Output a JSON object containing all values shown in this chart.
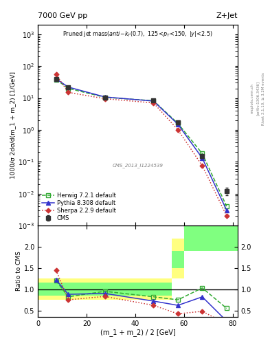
{
  "title_left": "7000 GeV pp",
  "title_right": "Z+Jet",
  "cms_label": "CMS_2013_I1224539",
  "rivet_label": "Rivet 3.1.10, ≥ 3.2M events",
  "arxiv_label": "[arXiv:1306.3436]",
  "mcplots_label": "mcplots.cern.ch",
  "xlabel": "(m_1 + m_2) / 2 [GeV]",
  "ylabel_main": "1000/σ 2dσ/d(m_1 + m_2) [1/GeV]",
  "ylabel_ratio": "Ratio to CMS",
  "xlim": [
    0,
    82
  ],
  "ylim_main": [
    0.001,
    2000.0
  ],
  "ylim_ratio": [
    0.35,
    2.5
  ],
  "x_ticks": [
    0,
    20,
    40,
    60,
    80
  ],
  "cms_x": [
    7.5,
    12.5,
    27.5,
    47.5,
    57.5,
    67.5,
    77.5
  ],
  "cms_y": [
    40,
    22,
    10.5,
    8.5,
    1.7,
    0.15,
    0.012
  ],
  "cms_yerr_lo": [
    3,
    2,
    1,
    0.8,
    0.2,
    0.02,
    0.003
  ],
  "cms_yerr_hi": [
    3,
    2,
    1,
    0.8,
    0.2,
    0.02,
    0.003
  ],
  "herwig_x": [
    7.5,
    12.5,
    27.5,
    47.5,
    57.5,
    67.5,
    77.5
  ],
  "herwig_y": [
    38,
    20,
    10.5,
    8.2,
    1.6,
    0.18,
    0.004
  ],
  "pythia_x": [
    7.5,
    12.5,
    27.5,
    47.5,
    57.5,
    67.5,
    77.5
  ],
  "pythia_y": [
    40,
    22,
    10.8,
    8.0,
    1.5,
    0.13,
    0.003
  ],
  "sherpa_x": [
    7.5,
    12.5,
    27.5,
    47.5,
    57.5,
    67.5,
    77.5
  ],
  "sherpa_y": [
    55,
    15,
    9.5,
    7.0,
    1.0,
    0.075,
    0.002
  ],
  "ratio_herwig_x": [
    7.5,
    12.5,
    27.5,
    47.5,
    57.5,
    67.5,
    77.5
  ],
  "ratio_herwig_y": [
    1.2,
    0.82,
    0.95,
    0.82,
    0.75,
    1.03,
    0.55
  ],
  "ratio_pythia_x": [
    7.5,
    12.5,
    27.5,
    47.5,
    57.5,
    67.5,
    77.5
  ],
  "ratio_pythia_y": [
    1.22,
    0.88,
    0.9,
    0.72,
    0.62,
    0.82,
    0.25
  ],
  "ratio_sherpa_x": [
    7.5,
    12.5,
    27.5,
    47.5,
    57.5,
    67.5,
    77.5
  ],
  "ratio_sherpa_y": [
    1.45,
    0.75,
    0.83,
    0.62,
    0.42,
    0.48,
    0.18
  ],
  "band_bins": [
    0,
    55,
    60,
    82
  ],
  "band_yellow_lo": [
    0.75,
    1.25,
    2.2
  ],
  "band_yellow_hi": [
    1.25,
    2.2,
    2.8
  ],
  "band_green_lo": [
    0.85,
    1.5,
    1.9
  ],
  "band_green_hi": [
    1.15,
    1.9,
    2.5
  ],
  "color_cms": "#333333",
  "color_herwig": "#33aa33",
  "color_pythia": "#3333cc",
  "color_sherpa": "#cc3333",
  "color_yellow": "#ffff80",
  "color_green": "#80ff80",
  "background_color": "#ffffff"
}
